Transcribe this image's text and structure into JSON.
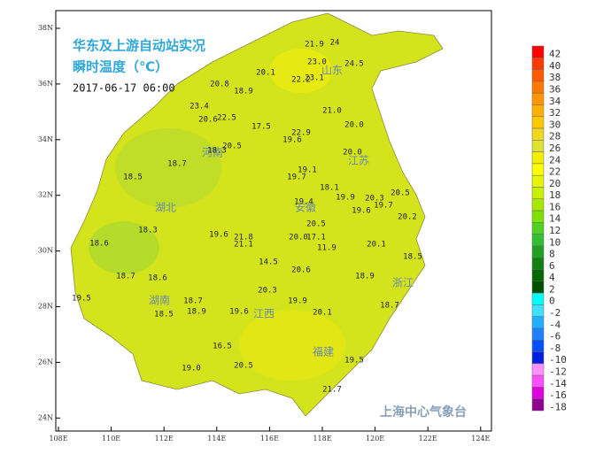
{
  "map": {
    "title_line1": "华东及上游自动站实况",
    "title_line2": "瞬时温度（℃）",
    "datetime": "2017-06-17 06:00",
    "watermark": "上海中心气象台",
    "lon_labels": [
      "108E",
      "110E",
      "112E",
      "114E",
      "116E",
      "118E",
      "120E",
      "122E",
      "124E"
    ],
    "lat_labels": [
      "38N",
      "36N",
      "34N",
      "32N",
      "30N",
      "28N",
      "26N",
      "24N"
    ],
    "provinces": [
      "山东",
      "河南",
      "江苏",
      "湖北",
      "安徽",
      "浙江",
      "湖南",
      "江西",
      "福建"
    ],
    "stations": [
      "21.9",
      "24",
      "23.0",
      "24.5",
      "20.1",
      "22.2",
      "23.1",
      "20.8",
      "18.9",
      "23.4",
      "21.0",
      "20.6",
      "22.5",
      "17.5",
      "22.9",
      "20.0",
      "19.6",
      "20.5",
      "18.3",
      "20.0",
      "18.7",
      "19.1",
      "19.7",
      "18.5",
      "18.1",
      "19.9",
      "20.3",
      "20.5",
      "19.4",
      "19.7",
      "19.6",
      "20.2",
      "20.5",
      "18.3",
      "19.6",
      "21.8",
      "20.0",
      "17.1",
      "18.6",
      "21.1",
      "11.9",
      "20.1",
      "14.5",
      "18.5",
      "20.6",
      "18.7",
      "18.6",
      "18.9",
      "20.3",
      "19.5",
      "18.7",
      "19.9",
      "18.7",
      "18.5",
      "18.9",
      "19.6",
      "20.1",
      "16.5",
      "19.0",
      "20.5",
      "19.5",
      "21.7"
    ],
    "legend": [
      {
        "label": "42",
        "color": "#ff0000"
      },
      {
        "label": "40",
        "color": "#ff3a00"
      },
      {
        "label": "38",
        "color": "#ff5a00"
      },
      {
        "label": "36",
        "color": "#ff7800"
      },
      {
        "label": "34",
        "color": "#ff9600"
      },
      {
        "label": "32",
        "color": "#ffb000"
      },
      {
        "label": "30",
        "color": "#ffc800"
      },
      {
        "label": "28",
        "color": "#f0d820"
      },
      {
        "label": "26",
        "color": "#e0e030"
      },
      {
        "label": "24",
        "color": "#f0f000"
      },
      {
        "label": "22",
        "color": "#ffff00"
      },
      {
        "label": "20",
        "color": "#e6f500"
      },
      {
        "label": "18",
        "color": "#c8f000"
      },
      {
        "label": "16",
        "color": "#a8e800"
      },
      {
        "label": "14",
        "color": "#80e000"
      },
      {
        "label": "12",
        "color": "#50d020"
      },
      {
        "label": "10",
        "color": "#30c030"
      },
      {
        "label": "8",
        "color": "#20a020"
      },
      {
        "label": "6",
        "color": "#108010"
      },
      {
        "label": "4",
        "color": "#006800"
      },
      {
        "label": "2",
        "color": "#005000"
      },
      {
        "label": "0",
        "color": "#00ffff"
      },
      {
        "label": "-2",
        "color": "#40e0ff"
      },
      {
        "label": "-4",
        "color": "#20b0ff"
      },
      {
        "label": "-6",
        "color": "#2080ff"
      },
      {
        "label": "-8",
        "color": "#0050ff"
      },
      {
        "label": "-10",
        "color": "#0020e0"
      },
      {
        "label": "-12",
        "color": "#ff90ff"
      },
      {
        "label": "-14",
        "color": "#ff50ff"
      },
      {
        "label": "-16",
        "color": "#e000e0"
      },
      {
        "label": "-18",
        "color": "#900090"
      }
    ]
  }
}
